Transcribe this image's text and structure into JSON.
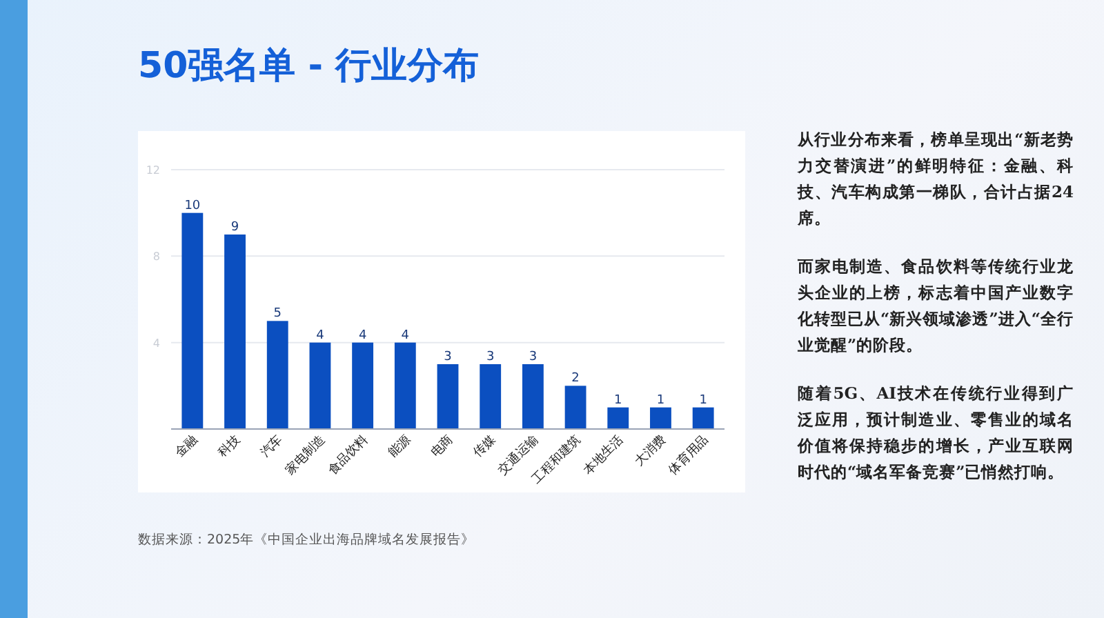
{
  "chart_data": {
    "type": "bar",
    "title": "50强名单 - 行业分布",
    "categories": [
      "金融",
      "科技",
      "汽车",
      "家电制造",
      "食品饮料",
      "能源",
      "电商",
      "传媒",
      "交通运输",
      "工程和建筑",
      "本地生活",
      "大消费",
      "体育用品"
    ],
    "values": [
      10,
      9,
      5,
      4,
      4,
      4,
      3,
      3,
      3,
      2,
      1,
      1,
      1
    ],
    "color": "#0b4fc0",
    "ylim": [
      0,
      12
    ],
    "yticks": [
      4,
      8,
      12
    ],
    "grid": "y",
    "data_labels": true,
    "annotations": [
      "从行业分布来看，榜单呈现出“新老势力交替演进”的鲜明特征：金融、科技、汽车构成第一梯队，合计占据24席。",
      "而家电制造、食品饮料等传统行业龙头企业的上榜，标志着中国产业数字化转型已从“新兴领域渗透”进入“全行业觉醒”的阶段。",
      "随着5G、AI技术在传统行业得到广泛应用，预计制造业、零售业的域名价值将保持稳步的增长，产业互联网时代的“域名军备竞赛”已悄然打响。",
      "数据来源：2025年《中国企业出海品牌域名发展报告》"
    ]
  }
}
